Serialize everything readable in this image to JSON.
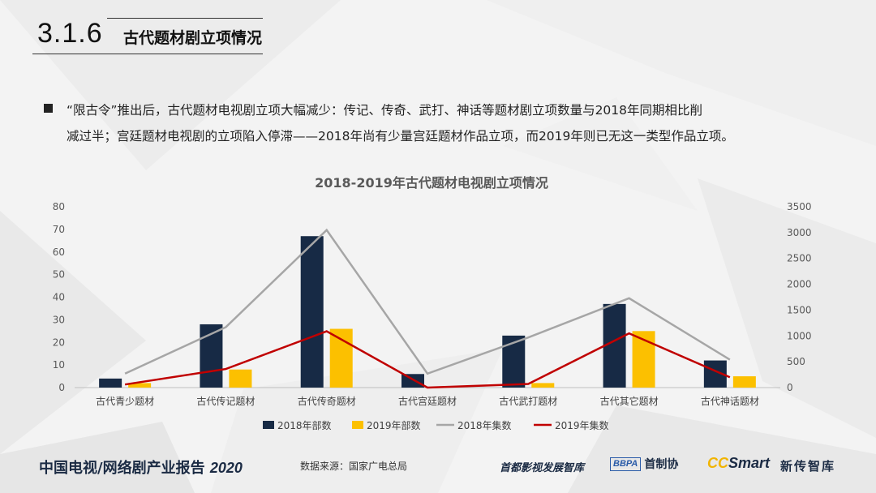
{
  "header": {
    "section_number": "3.1.6",
    "section_title": "古代题材剧立项情况"
  },
  "body": {
    "paragraph_line1": "“限古令”推出后，古代题材电视剧立项大幅减少：传记、传奇、武打、神话等题材剧立项数量与2018年同期相比削",
    "paragraph_line2": "减过半；宫廷题材电视剧的立项陷入停滞——2018年尚有少量宫廷题材作品立项，而2019年则已无这一类型作品立项。"
  },
  "chart_data": {
    "type": "bar",
    "title": "2018-2019年古代题材电视剧立项情况",
    "categories": [
      "古代青少题材",
      "古代传记题材",
      "古代传奇题材",
      "古代宫廷题材",
      "古代武打题材",
      "古代其它题材",
      "古代神话题材"
    ],
    "ylim_left": [
      0,
      80
    ],
    "yticks_left": [
      "0",
      "10",
      "20",
      "30",
      "40",
      "50",
      "60",
      "70",
      "80"
    ],
    "ylim_right": [
      0,
      3500
    ],
    "yticks_right": [
      "0",
      "500",
      "1000",
      "1500",
      "2000",
      "2500",
      "3000",
      "3500"
    ],
    "grid": false,
    "legend_position": "bottom",
    "series": [
      {
        "name": "2018年部数",
        "kind": "bar",
        "axis": "left",
        "color": "#172a45",
        "values": [
          4,
          28,
          67,
          6,
          23,
          37,
          12
        ]
      },
      {
        "name": "2019年部数",
        "kind": "bar",
        "axis": "left",
        "color": "#fcc000",
        "values": [
          2,
          8,
          26,
          0,
          2,
          25,
          5
        ]
      },
      {
        "name": "2018年集数",
        "kind": "line",
        "axis": "right",
        "color": "#a6a6a6",
        "values": [
          270,
          1170,
          3050,
          270,
          970,
          1730,
          540
        ]
      },
      {
        "name": "2019年集数",
        "kind": "line",
        "axis": "right",
        "color": "#c00000",
        "values": [
          60,
          360,
          1090,
          0,
          70,
          1050,
          200
        ]
      }
    ]
  },
  "footer": {
    "report_title": "中国电视/网络剧产业报告",
    "report_year": "2020",
    "source": "数据来源：国家广电总局",
    "logo1": "首都影视发展智库",
    "logo2_box": "BBPA",
    "logo2_text": "首制协",
    "logo3_cc": "CC",
    "logo3_smart": "Smart",
    "logo4": "新传智库"
  }
}
